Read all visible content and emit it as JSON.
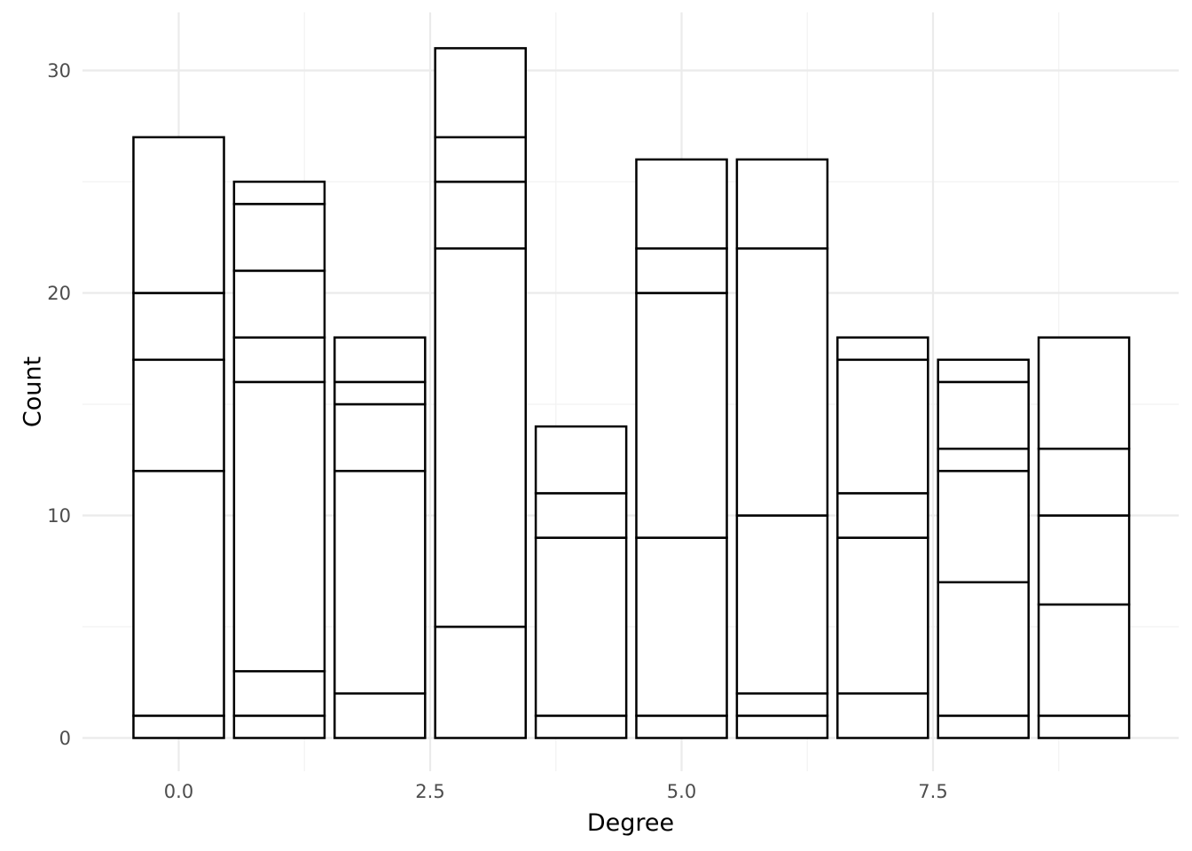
{
  "chart_data": {
    "type": "bar",
    "stacked": true,
    "title": "",
    "xlabel": "Degree",
    "ylabel": "Count",
    "xlim": [
      -0.9,
      9.9
    ],
    "ylim": [
      -1.25,
      32.5
    ],
    "x_ticks": [
      {
        "value": 0,
        "label": "0.0"
      },
      {
        "value": 2.5,
        "label": "2.5"
      },
      {
        "value": 5,
        "label": "5.0"
      },
      {
        "value": 7.5,
        "label": "7.5"
      }
    ],
    "y_ticks": [
      {
        "value": 0,
        "label": "0"
      },
      {
        "value": 10,
        "label": "10"
      },
      {
        "value": 20,
        "label": "20"
      },
      {
        "value": 30,
        "label": "30"
      }
    ],
    "grid": true,
    "legend": "none",
    "bar_fill": "#ffffff",
    "bar_outline": "#000000",
    "bars": [
      {
        "x": 0,
        "segments": [
          1,
          11,
          5,
          3,
          7
        ]
      },
      {
        "x": 1,
        "segments": [
          1,
          2,
          13,
          2,
          3,
          3,
          1
        ]
      },
      {
        "x": 2,
        "segments": [
          2,
          10,
          3,
          1,
          2
        ]
      },
      {
        "x": 3,
        "segments": [
          5,
          17,
          3,
          2,
          4
        ]
      },
      {
        "x": 4,
        "segments": [
          1,
          8,
          2,
          3
        ]
      },
      {
        "x": 5,
        "segments": [
          1,
          8,
          11,
          2,
          4
        ]
      },
      {
        "x": 6,
        "segments": [
          1,
          1,
          8,
          12,
          4
        ]
      },
      {
        "x": 7,
        "segments": [
          2,
          7,
          2,
          6,
          1
        ]
      },
      {
        "x": 8,
        "segments": [
          1,
          6,
          5,
          1,
          3,
          1
        ]
      },
      {
        "x": 9,
        "segments": [
          1,
          5,
          4,
          3,
          5
        ]
      }
    ]
  }
}
